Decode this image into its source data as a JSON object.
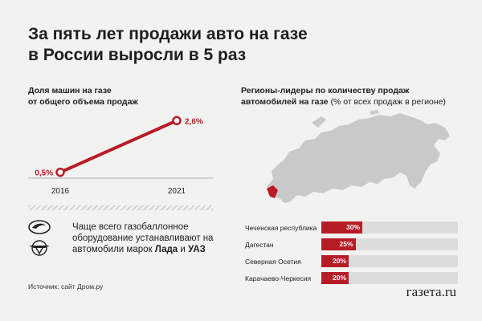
{
  "title_lines": [
    "За пять лет продажи авто на газе",
    "в России выросли в 5 раз"
  ],
  "line_chart": {
    "title_lines": [
      "Доля машин на газе",
      "от общего объема продаж"
    ]
  },
  "chart_data": [
    {
      "type": "line",
      "title": "Доля машин на газе от общего объема продаж",
      "x": [
        "2016",
        "2021"
      ],
      "series": [
        {
          "values": [
            0.5,
            2.6
          ]
        }
      ],
      "value_labels": [
        "0,5%",
        "2,6%"
      ],
      "x_tick_labels": [
        "2016",
        "2021"
      ],
      "color": "#b71c26"
    },
    {
      "type": "bar",
      "orientation": "horizontal",
      "title": "Регионы-лидеры по количеству продаж автомобилей на газе (% от всех продаж в регионе)",
      "categories": [
        "Чеченская республика",
        "Дагестан",
        "Северная Осетия",
        "Карачаево-Черкесия"
      ],
      "values": [
        30,
        25,
        20,
        20
      ],
      "value_labels": [
        "30%",
        "25%",
        "20%",
        "20%"
      ],
      "xlim": [
        0,
        100
      ],
      "bar_color": "#b71c26",
      "track_color": "#dcdcdc"
    }
  ],
  "regions": {
    "title_bold": "Регионы-лидеры по количеству продаж автомобилей на газе",
    "title_normal": "(% от всех продаж в регионе)"
  },
  "brand": {
    "text_before": "Чаще всего газобаллонное оборудование устанавливают на автомобили марок ",
    "brand1": "Лада",
    "and": " и ",
    "brand2": "УАЗ",
    "icons": [
      "lada-logo-icon",
      "uaz-logo-icon"
    ]
  },
  "source": "Источник: сайт Дром.ру",
  "logo": "газета.ru",
  "colors": {
    "accent": "#b71c26",
    "map": "#c9c9c9",
    "background": "#f2f2f1"
  }
}
